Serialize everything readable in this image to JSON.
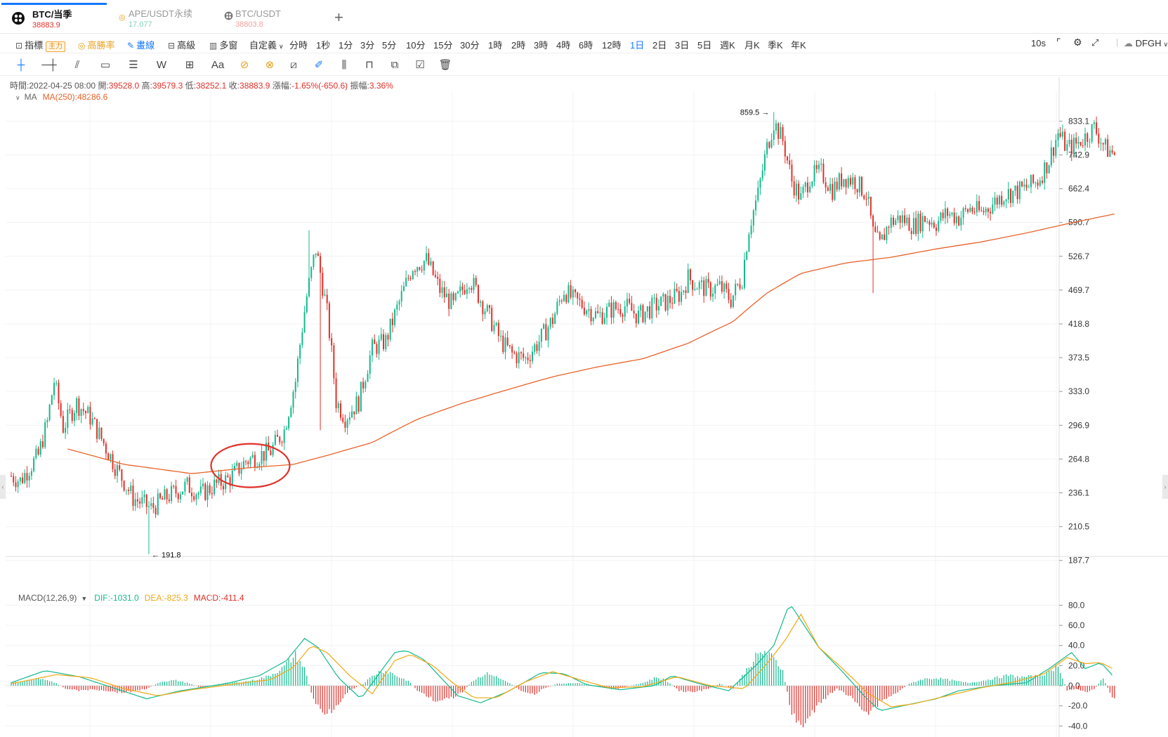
{
  "tabs": [
    {
      "symbol": "BTC/当季",
      "price": "38883.9",
      "price_color": "#e0302a",
      "icon": "btc-coin-icon",
      "active": true
    },
    {
      "symbol": "APE/USDT永续",
      "price": "17.077",
      "price_color": "#13b98d",
      "icon": "ape-coin-icon",
      "active": false
    },
    {
      "symbol": "BTC/USDT",
      "price": "38803.8",
      "price_color": "#e0302a",
      "icon": "btc-coin-icon",
      "active": false
    }
  ],
  "toolbar": {
    "indicator_label": "指標",
    "indicator_badge": "主力",
    "winrate_label": "高勝率",
    "draw_label": "畫線",
    "advanced_label": "高級",
    "multiwindow_label": "多窗",
    "custom_label": "自定義",
    "timeframes": [
      "分時",
      "1秒",
      "1分",
      "3分",
      "5分",
      "10分",
      "15分",
      "30分",
      "1時",
      "2時",
      "3時",
      "4時",
      "6時",
      "12時",
      "1日",
      "2日",
      "3日",
      "5日",
      "週K",
      "月K",
      "季K",
      "年K"
    ],
    "active_timeframe": "1日",
    "refresh_label": "10s",
    "user_label": "DFGH"
  },
  "drawing_tools": [
    "crosshair-icon",
    "horizontal-line-icon",
    "trend-line-icon",
    "rectangle-icon",
    "fib-icon",
    "wave-icon",
    "measure-icon",
    "text-icon",
    "magnet-icon",
    "link-icon",
    "ruler-icon",
    "pencil-icon",
    "candles-icon",
    "lock-icon",
    "copy-icon",
    "edit-icon",
    "trash-icon"
  ],
  "ohlc": {
    "time_label": "時間:",
    "time": "2022-04-25 08:00",
    "open_label": "開:",
    "open": "39528.0",
    "high_label": "高:",
    "high": "39579.3",
    "low_label": "低:",
    "low": "38252.1",
    "close_label": "收:",
    "close": "38883.9",
    "change_label": "漲幅:",
    "change": "-1.65%(-650.6)",
    "amplitude_label": "振幅:",
    "amplitude": "3.36%"
  },
  "ma": {
    "label": "MA",
    "value_text": "MA(250):48286.6",
    "color": "#e8622a"
  },
  "macd": {
    "label": "MACD(12,26,9)",
    "dif": "DIF:-1031.0",
    "dea": "DEA:-825.3",
    "macd": "MACD:-411.4",
    "dif_color": "#13b98d",
    "dea_color": "#f0a814"
  },
  "annotations": {
    "high_label": "859.5",
    "low_label": "191.8",
    "circle_color": "#e0302a"
  },
  "colors": {
    "up": "#13b98d",
    "down": "#e0302a",
    "ma": "#e8622a"
  },
  "chart_data": [
    {
      "type": "candlestick",
      "title": "",
      "y_ticks": [
        833.1,
        742.9,
        662.4,
        590.7,
        526.7,
        469.7,
        418.8,
        373.5,
        333.0,
        296.9,
        264.8,
        236.1,
        210.5,
        187.7
      ],
      "y_scale": "log",
      "ylim": [
        178,
        900
      ],
      "price_path": [
        [
          0,
          250
        ],
        [
          4,
          246
        ],
        [
          12,
          268
        ],
        [
          16,
          300
        ],
        [
          19,
          345
        ],
        [
          23,
          295
        ],
        [
          29,
          320
        ],
        [
          35,
          305
        ],
        [
          42,
          275
        ],
        [
          47,
          255
        ],
        [
          54,
          232
        ],
        [
          62,
          224
        ],
        [
          70,
          234
        ],
        [
          78,
          242
        ],
        [
          84,
          235
        ],
        [
          90,
          242
        ],
        [
          97,
          248
        ],
        [
          104,
          263
        ],
        [
          110,
          268
        ],
        [
          115,
          272
        ],
        [
          121,
          292
        ],
        [
          126,
          345
        ],
        [
          131,
          460
        ],
        [
          135,
          540
        ],
        [
          140,
          435
        ],
        [
          144,
          322
        ],
        [
          148,
          305
        ],
        [
          154,
          322
        ],
        [
          160,
          385
        ],
        [
          166,
          395
        ],
        [
          172,
          450
        ],
        [
          178,
          510
        ],
        [
          184,
          520
        ],
        [
          190,
          470
        ],
        [
          196,
          445
        ],
        [
          203,
          490
        ],
        [
          208,
          455
        ],
        [
          212,
          428
        ],
        [
          217,
          395
        ],
        [
          222,
          378
        ],
        [
          228,
          372
        ],
        [
          234,
          395
        ],
        [
          240,
          425
        ],
        [
          245,
          470
        ],
        [
          249,
          455
        ],
        [
          254,
          445
        ],
        [
          260,
          430
        ],
        [
          266,
          440
        ],
        [
          272,
          445
        ],
        [
          278,
          430
        ],
        [
          285,
          445
        ],
        [
          291,
          452
        ],
        [
          297,
          465
        ],
        [
          300,
          490
        ],
        [
          303,
          480
        ],
        [
          309,
          470
        ],
        [
          314,
          475
        ],
        [
          319,
          455
        ],
        [
          324,
          490
        ],
        [
          327,
          580
        ],
        [
          331,
          650
        ],
        [
          335,
          762
        ],
        [
          338,
          830
        ],
        [
          342,
          780
        ],
        [
          346,
          680
        ],
        [
          350,
          640
        ],
        [
          354,
          690
        ],
        [
          359,
          700
        ],
        [
          364,
          660
        ],
        [
          369,
          690
        ],
        [
          374,
          680
        ],
        [
          379,
          650
        ],
        [
          382,
          570
        ],
        [
          385,
          545
        ],
        [
          389,
          590
        ],
        [
          394,
          600
        ],
        [
          400,
          585
        ],
        [
          405,
          600
        ],
        [
          410,
          590
        ],
        [
          415,
          610
        ],
        [
          420,
          600
        ],
        [
          425,
          620
        ],
        [
          430,
          610
        ],
        [
          435,
          630
        ],
        [
          440,
          650
        ],
        [
          445,
          655
        ],
        [
          450,
          665
        ],
        [
          455,
          680
        ],
        [
          460,
          730
        ],
        [
          464,
          800
        ],
        [
          468,
          760
        ],
        [
          472,
          770
        ],
        [
          476,
          790
        ],
        [
          480,
          815
        ],
        [
          485,
          760
        ],
        [
          489,
          745
        ]
      ],
      "ma250_path": [
        [
          25,
          274
        ],
        [
          50,
          260
        ],
        [
          80,
          252
        ],
        [
          105,
          257
        ],
        [
          125,
          260
        ],
        [
          140,
          268
        ],
        [
          160,
          280
        ],
        [
          180,
          303
        ],
        [
          200,
          320
        ],
        [
          220,
          335
        ],
        [
          240,
          350
        ],
        [
          260,
          362
        ],
        [
          280,
          372
        ],
        [
          300,
          392
        ],
        [
          320,
          422
        ],
        [
          335,
          465
        ],
        [
          350,
          497
        ],
        [
          370,
          515
        ],
        [
          390,
          525
        ],
        [
          410,
          540
        ],
        [
          430,
          553
        ],
        [
          450,
          570
        ],
        [
          470,
          590
        ],
        [
          489,
          608
        ]
      ],
      "highest": 859.5,
      "lowest": 191.8
    },
    {
      "type": "macd",
      "title": "MACD(12,26,9)",
      "y_ticks": [
        80.0,
        60.0,
        40.0,
        20.0,
        0.0,
        -20.0,
        -40.0
      ],
      "ylim": [
        -44,
        88
      ],
      "series": [
        {
          "name": "DIF",
          "values": [
            [
              0,
              3
            ],
            [
              15,
              15
            ],
            [
              30,
              9
            ],
            [
              45,
              -2
            ],
            [
              60,
              -13
            ],
            [
              75,
              -5
            ],
            [
              95,
              2
            ],
            [
              110,
              10
            ],
            [
              122,
              25
            ],
            [
              130,
              47
            ],
            [
              136,
              38
            ],
            [
              145,
              8
            ],
            [
              155,
              -13
            ],
            [
              165,
              18
            ],
            [
              170,
              33
            ],
            [
              175,
              35
            ],
            [
              183,
              26
            ],
            [
              190,
              9
            ],
            [
              198,
              -10
            ],
            [
              208,
              -17
            ],
            [
              220,
              -6
            ],
            [
              235,
              13
            ],
            [
              245,
              12
            ],
            [
              255,
              1
            ],
            [
              270,
              -4
            ],
            [
              285,
              0
            ],
            [
              293,
              10
            ],
            [
              305,
              2
            ],
            [
              318,
              -5
            ],
            [
              330,
              20
            ],
            [
              338,
              40
            ],
            [
              345,
              82
            ],
            [
              350,
              65
            ],
            [
              358,
              38
            ],
            [
              368,
              15
            ],
            [
              378,
              -10
            ],
            [
              385,
              -25
            ],
            [
              395,
              -20
            ],
            [
              410,
              -13
            ],
            [
              420,
              -5
            ],
            [
              435,
              0
            ],
            [
              450,
              3
            ],
            [
              460,
              17
            ],
            [
              470,
              33
            ],
            [
              476,
              17
            ],
            [
              483,
              23
            ],
            [
              489,
              8
            ]
          ]
        },
        {
          "name": "DEA",
          "values": [
            [
              0,
              2
            ],
            [
              20,
              11
            ],
            [
              35,
              8
            ],
            [
              50,
              -3
            ],
            [
              65,
              -10
            ],
            [
              80,
              -4
            ],
            [
              100,
              2
            ],
            [
              115,
              6
            ],
            [
              125,
              18
            ],
            [
              133,
              40
            ],
            [
              140,
              33
            ],
            [
              150,
              10
            ],
            [
              160,
              -8
            ],
            [
              170,
              25
            ],
            [
              177,
              31
            ],
            [
              187,
              20
            ],
            [
              195,
              4
            ],
            [
              205,
              -12
            ],
            [
              215,
              -12
            ],
            [
              228,
              4
            ],
            [
              240,
              14
            ],
            [
              252,
              6
            ],
            [
              265,
              -2
            ],
            [
              280,
              -1
            ],
            [
              295,
              9
            ],
            [
              310,
              0
            ],
            [
              325,
              -3
            ],
            [
              335,
              22
            ],
            [
              343,
              45
            ],
            [
              350,
              71
            ],
            [
              358,
              38
            ],
            [
              368,
              18
            ],
            [
              380,
              -8
            ],
            [
              390,
              -21
            ],
            [
              400,
              -18
            ],
            [
              415,
              -10
            ],
            [
              430,
              -2
            ],
            [
              445,
              4
            ],
            [
              458,
              12
            ],
            [
              468,
              28
            ],
            [
              476,
              22
            ],
            [
              483,
              23
            ],
            [
              489,
              16
            ]
          ]
        }
      ],
      "histogram": [
        [
          0,
          3
        ],
        [
          6,
          5
        ],
        [
          12,
          7
        ],
        [
          18,
          5
        ],
        [
          24,
          -3
        ],
        [
          30,
          -5
        ],
        [
          36,
          -4
        ],
        [
          42,
          -5
        ],
        [
          48,
          -7
        ],
        [
          54,
          -6
        ],
        [
          60,
          -3
        ],
        [
          66,
          4
        ],
        [
          72,
          6
        ],
        [
          78,
          3
        ],
        [
          84,
          -2
        ],
        [
          90,
          1
        ],
        [
          96,
          3
        ],
        [
          102,
          4
        ],
        [
          108,
          6
        ],
        [
          114,
          10
        ],
        [
          120,
          18
        ],
        [
          126,
          32
        ],
        [
          130,
          18
        ],
        [
          134,
          -15
        ],
        [
          138,
          -28
        ],
        [
          142,
          -25
        ],
        [
          146,
          -15
        ],
        [
          150,
          -5
        ],
        [
          156,
          2
        ],
        [
          160,
          10
        ],
        [
          164,
          16
        ],
        [
          168,
          14
        ],
        [
          172,
          9
        ],
        [
          176,
          5
        ],
        [
          180,
          -5
        ],
        [
          186,
          -13
        ],
        [
          190,
          -17
        ],
        [
          196,
          -12
        ],
        [
          200,
          -7
        ],
        [
          204,
          4
        ],
        [
          208,
          10
        ],
        [
          212,
          13
        ],
        [
          216,
          8
        ],
        [
          220,
          4
        ],
        [
          226,
          -5
        ],
        [
          232,
          -9
        ],
        [
          236,
          -3
        ],
        [
          242,
          2
        ],
        [
          250,
          3
        ],
        [
          256,
          1
        ],
        [
          262,
          -2
        ],
        [
          268,
          -4
        ],
        [
          274,
          0
        ],
        [
          280,
          3
        ],
        [
          286,
          9
        ],
        [
          290,
          6
        ],
        [
          296,
          -5
        ],
        [
          302,
          -7
        ],
        [
          308,
          -4
        ],
        [
          314,
          2
        ],
        [
          320,
          -3
        ],
        [
          326,
          17
        ],
        [
          330,
          30
        ],
        [
          334,
          36
        ],
        [
          338,
          28
        ],
        [
          342,
          16
        ],
        [
          346,
          -30
        ],
        [
          350,
          -42
        ],
        [
          354,
          -32
        ],
        [
          358,
          -20
        ],
        [
          362,
          -10
        ],
        [
          366,
          -3
        ],
        [
          372,
          -12
        ],
        [
          376,
          -20
        ],
        [
          380,
          -28
        ],
        [
          386,
          -15
        ],
        [
          392,
          -8
        ],
        [
          398,
          2
        ],
        [
          404,
          7
        ],
        [
          410,
          8
        ],
        [
          416,
          6
        ],
        [
          424,
          3
        ],
        [
          430,
          5
        ],
        [
          436,
          8
        ],
        [
          442,
          11
        ],
        [
          448,
          9
        ],
        [
          454,
          10
        ],
        [
          460,
          14
        ],
        [
          464,
          22
        ],
        [
          468,
          -5
        ],
        [
          472,
          -3
        ],
        [
          476,
          -7
        ],
        [
          480,
          -4
        ],
        [
          484,
          8
        ],
        [
          488,
          -12
        ]
      ]
    }
  ]
}
